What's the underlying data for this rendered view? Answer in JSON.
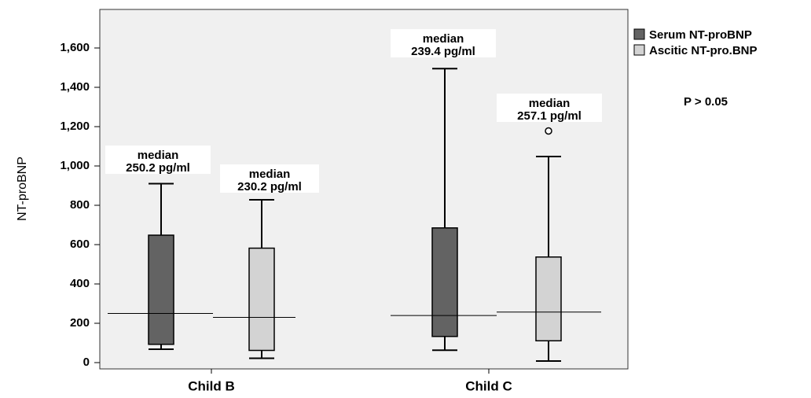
{
  "chart_data": {
    "type": "boxplot",
    "title": "",
    "xlabel": "",
    "ylabel": "NT-proBNP",
    "ylim": [
      -30,
      1800
    ],
    "yticks": [
      0,
      200,
      400,
      600,
      800,
      1000,
      1200,
      1400,
      1600
    ],
    "ytick_labels": [
      "0",
      "200",
      "400",
      "600",
      "800",
      "1,000",
      "1,200",
      "1,400",
      "1,600"
    ],
    "categories": [
      "Child B",
      "Child C"
    ],
    "legend_position": "top-right",
    "series": [
      {
        "name": "Serum NT-proBNP",
        "color": "#636363",
        "boxes": [
          {
            "category": "Child B",
            "whisker_low": 68,
            "q1": 93,
            "median": 250.2,
            "q3": 648,
            "whisker_high": 910,
            "outliers": []
          },
          {
            "category": "Child C",
            "whisker_low": 63,
            "q1": 133,
            "median": 239.4,
            "q3": 685,
            "whisker_high": 1495,
            "outliers": []
          }
        ]
      },
      {
        "name": "Ascitic NT-pro.BNP",
        "color": "#d3d3d3",
        "boxes": [
          {
            "category": "Child B",
            "whisker_low": 22,
            "q1": 62,
            "median": 230.2,
            "q3": 582,
            "whisker_high": 828,
            "outliers": []
          },
          {
            "category": "Child C",
            "whisker_low": 8,
            "q1": 111,
            "median": 257.1,
            "q3": 537,
            "whisker_high": 1048,
            "outliers": [
              1178
            ]
          }
        ]
      }
    ],
    "annotations": [
      {
        "label_line1": "median",
        "label_line2": "250.2 pg/ml"
      },
      {
        "label_line1": "median",
        "label_line2": "230.2 pg/ml"
      },
      {
        "label_line1": "median",
        "label_line2": "239.4 pg/ml"
      },
      {
        "label_line1": "median",
        "label_line2": "257.1 pg/ml"
      }
    ],
    "note": "P > 0.05",
    "background_color": "#f0f0f0",
    "grid": false
  }
}
